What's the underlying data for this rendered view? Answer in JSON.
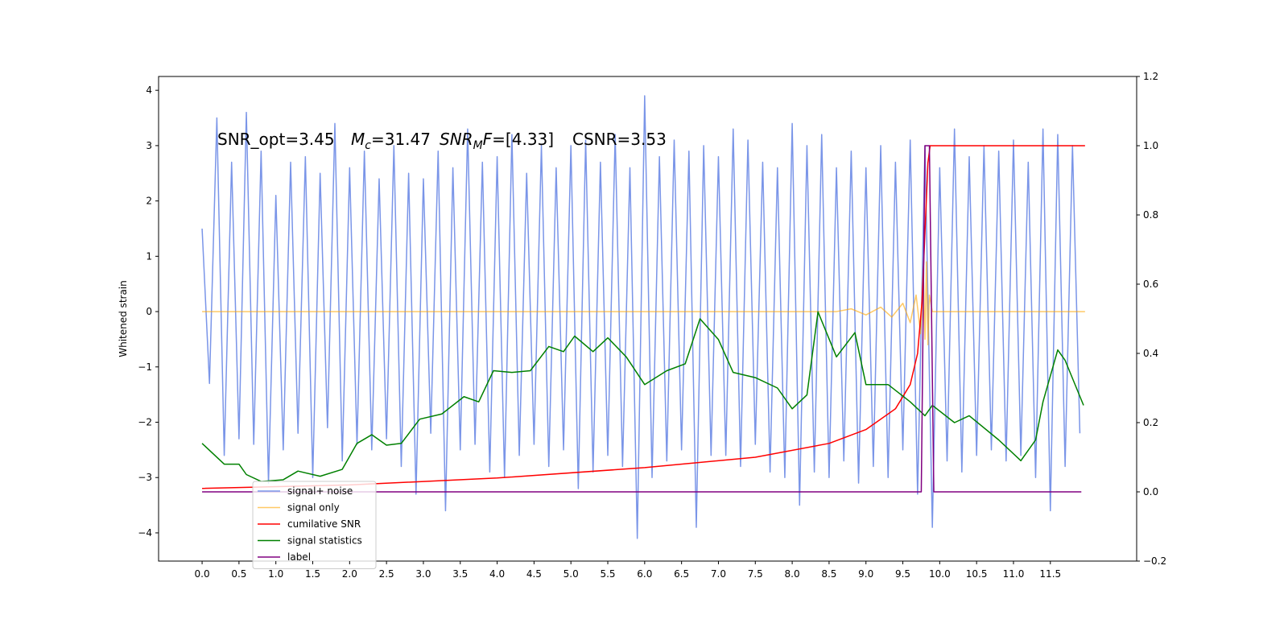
{
  "chart_data": {
    "type": "line",
    "ylabel": "Whitened strain",
    "annotation": [
      "SNR_opt=3.45",
      "M",
      "c",
      "=31.47",
      "SNR",
      "M",
      "F",
      "=[4.33]",
      "CSNR=3.53"
    ],
    "xlim": [
      -0.59,
      12.67
    ],
    "ylim": [
      -4.51,
      4.25
    ],
    "y2lim": [
      -0.2,
      1.2
    ],
    "xticks": [
      {
        "value": 0,
        "label": "0.0"
      },
      0.5,
      {
        "value": 1,
        "label": "1.0"
      },
      1.5,
      {
        "value": 2,
        "label": "2.0"
      },
      2.5,
      {
        "value": 3,
        "label": "3.0"
      },
      3.5,
      {
        "value": 4,
        "label": "4.0"
      },
      4.5,
      {
        "value": 5,
        "label": "5.0"
      },
      5.5,
      {
        "value": 6,
        "label": "6.0"
      },
      6.5,
      {
        "value": 7,
        "label": "7.0"
      },
      7.5,
      {
        "value": 8,
        "label": "8.0"
      },
      8.5,
      {
        "value": 9,
        "label": "9.0"
      },
      9.5,
      {
        "value": 10,
        "label": "10.0"
      },
      10.5,
      {
        "value": 11,
        "label": "11.0"
      },
      11.5
    ],
    "yticks": [
      {
        "value": -4,
        "label": "−4"
      },
      {
        "value": -3,
        "label": "−3"
      },
      {
        "value": -2,
        "label": "−2"
      },
      {
        "value": -1,
        "label": "−1"
      },
      0,
      1,
      2,
      3,
      4
    ],
    "y2ticks": [
      {
        "value": -0.2,
        "label": "−0.2"
      },
      {
        "value": 0,
        "label": "0.0"
      },
      0.2,
      0.4,
      0.6,
      0.8,
      {
        "value": 1,
        "label": "1.0"
      },
      1.2
    ],
    "legend": "lower left",
    "series": [
      {
        "name": "signal+ noise",
        "color": "#7a95e8",
        "axis": "y",
        "x": [
          0,
          0.1,
          0.2,
          0.3,
          0.4,
          0.5,
          0.6,
          0.7,
          0.8,
          0.9,
          1,
          1.1,
          1.2,
          1.3,
          1.4,
          1.5,
          1.6,
          1.7,
          1.8,
          1.9,
          2,
          2.1,
          2.2,
          2.3,
          2.4,
          2.5,
          2.6,
          2.7,
          2.8,
          2.9,
          3,
          3.1,
          3.2,
          3.3,
          3.4,
          3.5,
          3.6,
          3.7,
          3.8,
          3.9,
          4,
          4.1,
          4.2,
          4.3,
          4.4,
          4.5,
          4.6,
          4.7,
          4.8,
          4.9,
          5,
          5.1,
          5.2,
          5.3,
          5.4,
          5.5,
          5.6,
          5.7,
          5.8,
          5.9,
          6,
          6.1,
          6.2,
          6.3,
          6.4,
          6.5,
          6.6,
          6.7,
          6.8,
          6.9,
          7,
          7.1,
          7.2,
          7.3,
          7.4,
          7.5,
          7.6,
          7.7,
          7.8,
          7.9,
          8,
          8.1,
          8.2,
          8.3,
          8.4,
          8.5,
          8.6,
          8.7,
          8.8,
          8.9,
          9,
          9.1,
          9.2,
          9.3,
          9.4,
          9.5,
          9.6,
          9.7,
          9.8,
          9.9,
          10,
          10.1,
          10.2,
          10.3,
          10.4,
          10.5,
          10.6,
          10.7,
          10.8,
          10.9,
          11,
          11.1,
          11.2,
          11.3,
          11.4,
          11.5,
          11.6,
          11.7,
          11.8,
          11.9
        ],
        "values": [
          1.5,
          -1.3,
          3.5,
          -2.6,
          2.7,
          -2.3,
          3.6,
          -2.4,
          2.9,
          -3.1,
          2.1,
          -2.5,
          2.7,
          -2.2,
          2.8,
          -3.0,
          2.5,
          -2.1,
          3.4,
          -2.7,
          2.6,
          -2.4,
          2.9,
          -2.5,
          2.4,
          -2.3,
          3.0,
          -2.8,
          2.5,
          -3.3,
          2.4,
          -2.2,
          2.9,
          -3.6,
          2.6,
          -2.5,
          3.3,
          -2.4,
          2.7,
          -2.9,
          2.8,
          -3.0,
          3.2,
          -2.6,
          2.5,
          -2.4,
          3.0,
          -2.8,
          2.6,
          -2.5,
          3.0,
          -3.2,
          3.1,
          -2.9,
          2.7,
          -2.6,
          3.2,
          -2.8,
          2.6,
          -4.1,
          3.9,
          -3.0,
          2.8,
          -2.7,
          3.1,
          -2.5,
          2.9,
          -3.9,
          3.0,
          -2.6,
          2.8,
          -2.6,
          3.3,
          -2.8,
          3.1,
          -2.4,
          2.7,
          -2.9,
          2.6,
          -3.0,
          3.4,
          -3.5,
          3.0,
          -2.9,
          3.2,
          -3.0,
          2.6,
          -2.7,
          2.9,
          -3.1,
          2.6,
          -2.8,
          3.0,
          -3.0,
          2.7,
          -2.5,
          3.1,
          -3.3,
          3.0,
          -3.9,
          2.6,
          -2.7,
          3.3,
          -2.9,
          2.8,
          -2.6,
          3.0,
          -2.5,
          2.9,
          -2.7,
          3.1,
          -2.6,
          2.7,
          -3.0,
          3.3,
          -3.6,
          3.2,
          -2.8,
          3.0,
          -2.2
        ]
      },
      {
        "name": "signal only",
        "color": "orange",
        "alpha": 0.6,
        "axis": "y",
        "x": [
          0,
          8.6,
          8.8,
          9.0,
          9.2,
          9.35,
          9.5,
          9.6,
          9.68,
          9.74,
          9.78,
          9.8,
          9.82,
          9.84,
          9.86,
          9.9,
          11.97
        ],
        "values": [
          0,
          0,
          0.05,
          -0.06,
          0.08,
          -0.1,
          0.15,
          -0.2,
          0.3,
          -0.4,
          0.6,
          -0.5,
          0.9,
          -0.6,
          0.3,
          0,
          0
        ]
      },
      {
        "name": "cumilative SNR",
        "color": "red",
        "axis": "y2",
        "x": [
          0,
          2,
          4,
          6,
          7.5,
          8.5,
          9.0,
          9.4,
          9.6,
          9.7,
          9.76,
          9.8,
          9.84,
          9.87,
          11.97
        ],
        "values": [
          0.01,
          0.02,
          0.04,
          0.07,
          0.1,
          0.14,
          0.18,
          0.24,
          0.31,
          0.4,
          0.55,
          0.75,
          0.95,
          1.0,
          1.0
        ]
      },
      {
        "name": "signal statistics",
        "color": "green",
        "axis": "y2",
        "x": [
          0,
          0.3,
          0.5,
          0.6,
          0.8,
          1.1,
          1.3,
          1.6,
          1.9,
          2.1,
          2.3,
          2.5,
          2.7,
          2.95,
          3.25,
          3.55,
          3.75,
          3.95,
          4.2,
          4.45,
          4.7,
          4.9,
          5.05,
          5.3,
          5.5,
          5.75,
          6.0,
          6.3,
          6.55,
          6.75,
          7.0,
          7.2,
          7.5,
          7.8,
          8.0,
          8.2,
          8.35,
          8.6,
          8.85,
          9.0,
          9.3,
          9.6,
          9.8,
          9.9,
          10.2,
          10.4,
          10.8,
          11.1,
          11.3,
          11.4,
          11.6,
          11.7,
          11.95
        ],
        "values": [
          0.14,
          0.08,
          0.08,
          0.05,
          0.03,
          0.035,
          0.06,
          0.045,
          0.065,
          0.14,
          0.165,
          0.135,
          0.14,
          0.21,
          0.225,
          0.275,
          0.26,
          0.35,
          0.345,
          0.35,
          0.42,
          0.405,
          0.45,
          0.405,
          0.445,
          0.39,
          0.31,
          0.35,
          0.37,
          0.5,
          0.44,
          0.345,
          0.33,
          0.3,
          0.24,
          0.28,
          0.52,
          0.39,
          0.46,
          0.31,
          0.31,
          0.26,
          0.22,
          0.25,
          0.2,
          0.22,
          0.15,
          0.09,
          0.15,
          0.26,
          0.41,
          0.38,
          0.25
        ]
      },
      {
        "name": "label",
        "color": "purple",
        "axis": "y2",
        "x": [
          0,
          9.75,
          9.8,
          9.86,
          9.92,
          11.92
        ],
        "values": [
          0,
          0,
          1,
          1,
          0,
          0
        ]
      }
    ]
  }
}
